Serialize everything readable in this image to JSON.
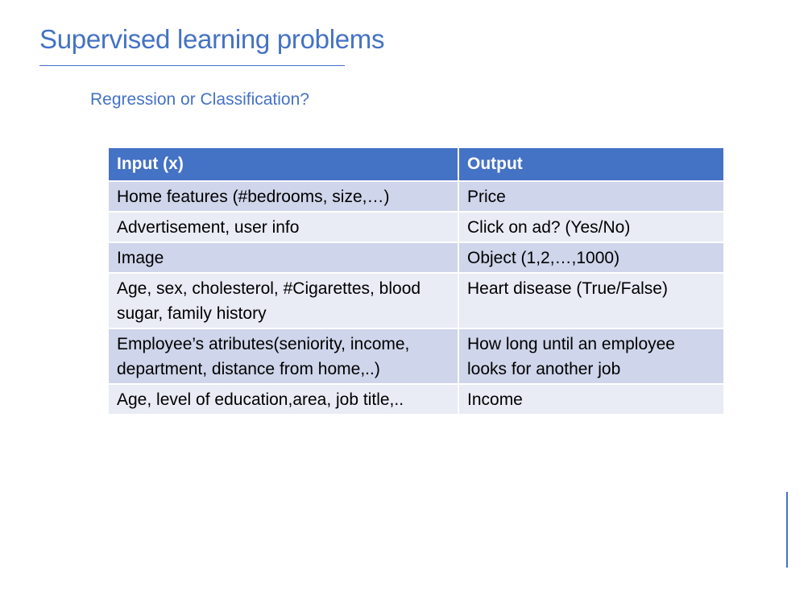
{
  "slide": {
    "title": "Supervised learning problems",
    "subtitle": "Regression or Classification?"
  },
  "table": {
    "headers": [
      "Input (x)",
      "Output"
    ],
    "rows": [
      {
        "input": "Home features (#bedrooms, size,…)",
        "output": "Price"
      },
      {
        "input": "Advertisement, user info",
        "output": "Click on ad? (Yes/No)"
      },
      {
        "input": "Image",
        "output": "Object (1,2,…,1000)"
      },
      {
        "input": "Age, sex, cholesterol, #Cigarettes, blood sugar, family history",
        "output": "Heart disease (True/False)"
      },
      {
        "input": "Employee’s atributes(seniority, income, department, distance from home,..)",
        "output": "How long until an employee looks for another job"
      },
      {
        "input": "Age, level of education,area, job title,..",
        "output": "Income"
      }
    ]
  },
  "colors": {
    "accent": "#4472c4",
    "row_dark": "#cfd5ea",
    "row_light": "#e9ebf5"
  }
}
